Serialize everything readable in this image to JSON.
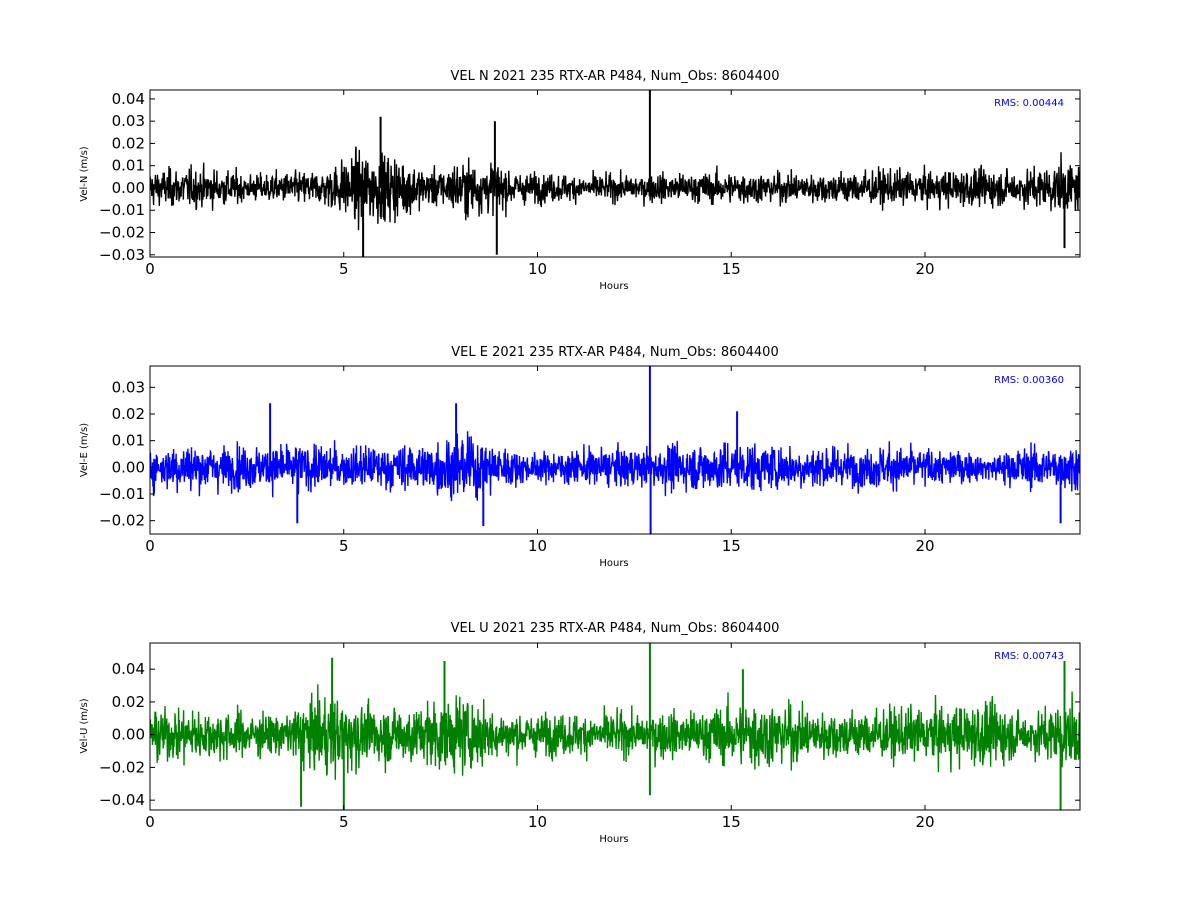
{
  "chart_data": [
    {
      "type": "line",
      "title": "VEL N 2021 235 RTX-AR  P484, Num_Obs: 8604400",
      "xlabel": "Hours",
      "ylabel": "Vel-N (m/s)",
      "xlim": [
        0,
        24
      ],
      "ylim": [
        -0.031,
        0.044
      ],
      "x_ticks": [
        0,
        5,
        10,
        15,
        20
      ],
      "x_tick_labels": [
        "0",
        "5",
        "10",
        "15",
        "20"
      ],
      "y_ticks": [
        -0.03,
        -0.02,
        -0.01,
        0.0,
        0.01,
        0.02,
        0.03,
        0.04
      ],
      "y_tick_labels": [
        "−0.03",
        "−0.02",
        "−0.01",
        "0.00",
        "0.01",
        "0.02",
        "0.03",
        "0.04"
      ],
      "color": "#000000",
      "rms_label": "RMS:  0.00444",
      "rms_color": "#0000ff",
      "grid": false,
      "noise_envelope": {
        "hours": [
          0,
          1,
          2,
          2.5,
          3,
          4,
          4.5,
          5,
          5.5,
          6,
          6.5,
          7,
          7.5,
          8,
          8.5,
          9,
          9.5,
          10,
          11,
          12,
          12.9,
          13,
          14,
          15,
          16,
          17,
          18,
          19,
          20,
          21,
          22,
          22.5,
          23,
          23.5,
          24
        ],
        "half_amplitude": [
          0.011,
          0.012,
          0.011,
          0.008,
          0.009,
          0.01,
          0.011,
          0.018,
          0.022,
          0.021,
          0.019,
          0.012,
          0.011,
          0.017,
          0.016,
          0.014,
          0.01,
          0.009,
          0.008,
          0.008,
          0.008,
          0.009,
          0.009,
          0.01,
          0.009,
          0.009,
          0.01,
          0.011,
          0.01,
          0.012,
          0.011,
          0.011,
          0.013,
          0.016,
          0.014
        ]
      },
      "spikes": [
        {
          "hour": 12.9,
          "value": 0.044
        },
        {
          "hour": 12.9,
          "value": -0.003
        },
        {
          "hour": 5.5,
          "value": -0.031
        },
        {
          "hour": 8.95,
          "value": -0.03
        },
        {
          "hour": 5.95,
          "value": 0.032
        },
        {
          "hour": 8.9,
          "value": 0.03
        },
        {
          "hour": 23.6,
          "value": -0.027
        }
      ]
    },
    {
      "type": "line",
      "title": "VEL E 2021 235 RTX-AR  P484, Num_Obs: 8604400",
      "xlabel": "Hours",
      "ylabel": "Vel-E (m/s)",
      "xlim": [
        0,
        24
      ],
      "ylim": [
        -0.025,
        0.038
      ],
      "x_ticks": [
        0,
        5,
        10,
        15,
        20
      ],
      "x_tick_labels": [
        "0",
        "5",
        "10",
        "15",
        "20"
      ],
      "y_ticks": [
        -0.02,
        -0.01,
        0.0,
        0.01,
        0.02,
        0.03
      ],
      "y_tick_labels": [
        "−0.02",
        "−0.01",
        "0.00",
        "0.01",
        "0.02",
        "0.03"
      ],
      "color": "#0000ff",
      "rms_label": "RMS:  0.00360",
      "rms_color": "#0000ff",
      "grid": false,
      "noise_envelope": {
        "hours": [
          0,
          1,
          2,
          3,
          4,
          5,
          6,
          7,
          7.5,
          8,
          8.5,
          9,
          9.5,
          10,
          11,
          12,
          12.9,
          13,
          14,
          15,
          16,
          17,
          18,
          19,
          20,
          21,
          21.5,
          22,
          23,
          24
        ],
        "half_amplitude": [
          0.011,
          0.012,
          0.011,
          0.011,
          0.012,
          0.01,
          0.011,
          0.012,
          0.014,
          0.017,
          0.015,
          0.012,
          0.008,
          0.007,
          0.009,
          0.01,
          0.009,
          0.011,
          0.012,
          0.013,
          0.012,
          0.011,
          0.01,
          0.011,
          0.01,
          0.008,
          0.006,
          0.009,
          0.011,
          0.011
        ]
      },
      "spikes": [
        {
          "hour": 12.9,
          "value": 0.038
        },
        {
          "hour": 12.92,
          "value": -0.025
        },
        {
          "hour": 3.1,
          "value": 0.024
        },
        {
          "hour": 7.9,
          "value": 0.024
        },
        {
          "hour": 3.8,
          "value": -0.021
        },
        {
          "hour": 8.6,
          "value": -0.022
        },
        {
          "hour": 15.15,
          "value": 0.021
        },
        {
          "hour": 23.5,
          "value": -0.021
        }
      ]
    },
    {
      "type": "line",
      "title": "VEL U 2021 235 RTX-AR  P484, Num_Obs: 8604400",
      "xlabel": "Hours",
      "ylabel": "Vel-U (m/s)",
      "xlim": [
        0,
        24
      ],
      "ylim": [
        -0.046,
        0.056
      ],
      "x_ticks": [
        0,
        5,
        10,
        15,
        20
      ],
      "x_tick_labels": [
        "0",
        "5",
        "10",
        "15",
        "20"
      ],
      "y_ticks": [
        -0.04,
        -0.02,
        0.0,
        0.02,
        0.04
      ],
      "y_tick_labels": [
        "−0.04",
        "−0.02",
        "0.00",
        "0.02",
        "0.04"
      ],
      "color": "#008000",
      "rms_label": "RMS:  0.00743",
      "rms_color": "#0000ff",
      "grid": false,
      "noise_envelope": {
        "hours": [
          0,
          1,
          2,
          3,
          3.5,
          4,
          4.5,
          5,
          5.5,
          6,
          7,
          7.5,
          8,
          8.5,
          9,
          10,
          11,
          12,
          12.9,
          13,
          14,
          15,
          15.5,
          16,
          17,
          18,
          19,
          20,
          21,
          21.5,
          22,
          22.5,
          23,
          23.5,
          24
        ],
        "half_amplitude": [
          0.02,
          0.022,
          0.02,
          0.017,
          0.016,
          0.03,
          0.033,
          0.03,
          0.025,
          0.024,
          0.025,
          0.03,
          0.032,
          0.025,
          0.019,
          0.017,
          0.017,
          0.018,
          0.016,
          0.019,
          0.02,
          0.025,
          0.03,
          0.027,
          0.021,
          0.02,
          0.021,
          0.022,
          0.026,
          0.028,
          0.024,
          0.018,
          0.02,
          0.028,
          0.025
        ]
      },
      "spikes": [
        {
          "hour": 12.9,
          "value": 0.056
        },
        {
          "hour": 12.9,
          "value": -0.037
        },
        {
          "hour": 5.0,
          "value": -0.046
        },
        {
          "hour": 3.9,
          "value": -0.044
        },
        {
          "hour": 4.7,
          "value": 0.047
        },
        {
          "hour": 23.6,
          "value": 0.045
        },
        {
          "hour": 23.5,
          "value": -0.046
        },
        {
          "hour": 7.6,
          "value": 0.045
        },
        {
          "hour": 15.3,
          "value": 0.04
        }
      ]
    }
  ]
}
